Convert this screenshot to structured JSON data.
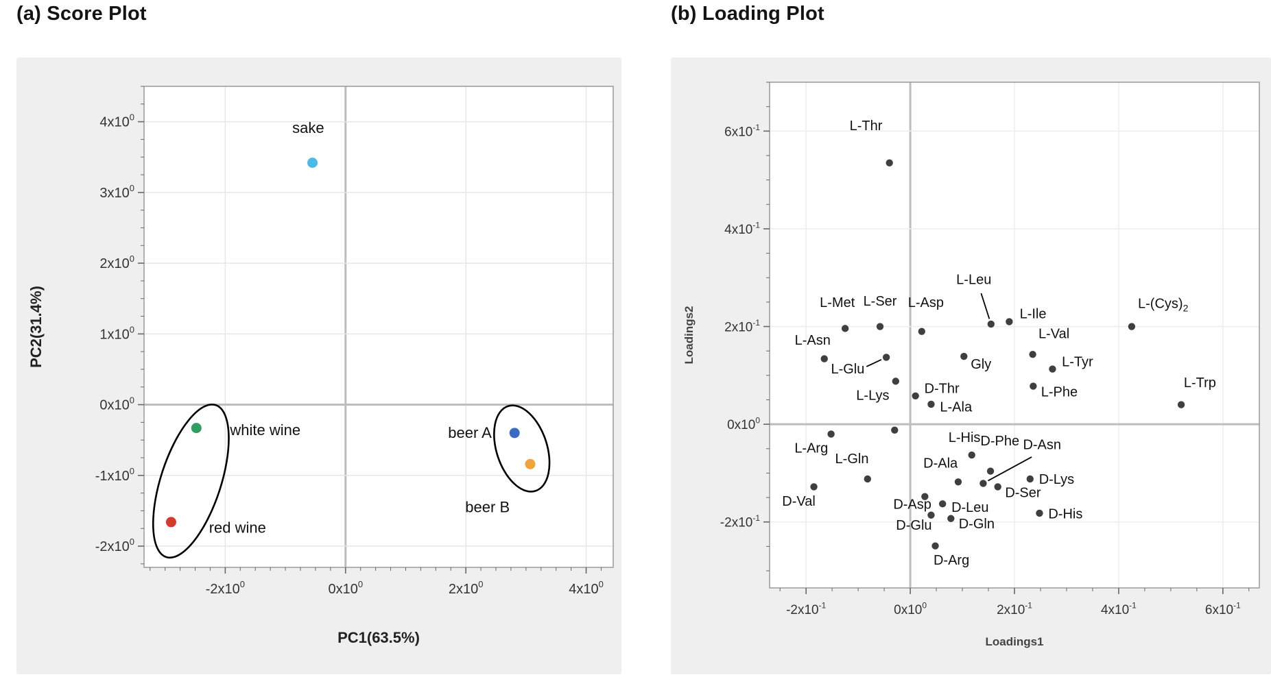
{
  "panels": [
    {
      "title": "(a) Score Plot"
    },
    {
      "title": "(b) Loading Plot"
    }
  ],
  "backgrounds": {
    "page": "#ffffff",
    "panel": "#efefef",
    "plot": "#ffffff"
  },
  "chart_data": [
    {
      "type": "scatter",
      "title": "(a) Score Plot",
      "xlabel": "PC1(63.5%)",
      "ylabel": "PC2(31.4%)",
      "xlim": [
        -3.35,
        4.45
      ],
      "ylim": [
        -2.3,
        4.5
      ],
      "grid": true,
      "x_minor_step": 0.25,
      "y_minor_step": 0.25,
      "point_radius": 7.5,
      "x_ticks": [
        {
          "value": -2,
          "label": "-2x10",
          "exp": "0"
        },
        {
          "value": 0,
          "label": "0x10",
          "exp": "0"
        },
        {
          "value": 2,
          "label": "2x10",
          "exp": "0"
        },
        {
          "value": 4,
          "label": "4x10",
          "exp": "0"
        }
      ],
      "y_ticks": [
        {
          "value": -2,
          "label": "-2x10",
          "exp": "0"
        },
        {
          "value": -1,
          "label": "-1x10",
          "exp": "0"
        },
        {
          "value": 0,
          "label": "0x10",
          "exp": "0"
        },
        {
          "value": 1,
          "label": "1x10",
          "exp": "0"
        },
        {
          "value": 2,
          "label": "2x10",
          "exp": "0"
        },
        {
          "value": 3,
          "label": "3x10",
          "exp": "0"
        },
        {
          "value": 4,
          "label": "4x10",
          "exp": "0"
        }
      ],
      "colors": {
        "grid": "#e6e6e6",
        "zero_line": "#bdbdbd",
        "border": "#9a9a9a",
        "tick": "#666666",
        "tick_label": "#333333",
        "point": "#3f3f3f",
        "label": "#111111",
        "annotation": "#000000",
        "axis_title": "#222222"
      },
      "points": [
        {
          "label": "sake",
          "x": -0.55,
          "y": 3.42,
          "color": "#4cb9e8",
          "lx": -0.62,
          "ly": 3.84,
          "anchor": "middle"
        },
        {
          "label": "white wine",
          "x": -2.48,
          "y": -0.33,
          "color": "#2f9e5f",
          "lx": -1.92,
          "ly": -0.43,
          "anchor": "start"
        },
        {
          "label": "red wine",
          "x": -2.9,
          "y": -1.66,
          "color": "#d63a2b",
          "lx": -2.27,
          "ly": -1.81,
          "anchor": "start"
        },
        {
          "label": "beer A",
          "x": 2.81,
          "y": -0.4,
          "color": "#3a6cc5",
          "lx": 2.43,
          "ly": -0.47,
          "anchor": "end"
        },
        {
          "label": "beer B",
          "x": 3.07,
          "y": -0.84,
          "color": "#f2a33b",
          "lx": 2.36,
          "ly": -1.52,
          "anchor": "middle"
        }
      ],
      "ellipses": [
        {
          "cx": -2.57,
          "cy": -1.08,
          "rx": 0.5,
          "ry": 1.13,
          "rotation": 18
        },
        {
          "cx": 2.93,
          "cy": -0.62,
          "rx": 0.42,
          "ry": 0.63,
          "rotation": -18
        }
      ]
    },
    {
      "type": "scatter",
      "title": "(b) Loading Plot",
      "xlabel": "Loadings1",
      "ylabel": "Loadings2",
      "xlim": [
        -0.27,
        0.67
      ],
      "ylim": [
        -0.335,
        0.7
      ],
      "grid": true,
      "x_minor_step": 0.05,
      "y_minor_step": 0.05,
      "point_radius": 5.2,
      "x_ticks": [
        {
          "value": -0.2,
          "label": "-2x10",
          "exp": "-1"
        },
        {
          "value": 0,
          "label": "0x10",
          "exp": "0"
        },
        {
          "value": 0.2,
          "label": "2x10",
          "exp": "-1"
        },
        {
          "value": 0.4,
          "label": "4x10",
          "exp": "-1"
        },
        {
          "value": 0.6,
          "label": "6x10",
          "exp": "-1"
        }
      ],
      "y_ticks": [
        {
          "value": -0.2,
          "label": "-2x10",
          "exp": "-1"
        },
        {
          "value": 0,
          "label": "0x10",
          "exp": "0"
        },
        {
          "value": 0.2,
          "label": "2x10",
          "exp": "-1"
        },
        {
          "value": 0.4,
          "label": "4x10",
          "exp": "-1"
        },
        {
          "value": 0.6,
          "label": "6x10",
          "exp": "-1"
        }
      ],
      "colors": {
        "grid": "#ededed",
        "zero_line": "#bdbdbd",
        "border": "#9a9a9a",
        "tick": "#666666",
        "tick_label": "#333333",
        "point": "#3f3f3f",
        "label": "#111111",
        "annotation": "#000000",
        "axis_title": "#444444"
      },
      "points": [
        {
          "label": "L-Thr",
          "x": -0.04,
          "y": 0.535,
          "lx": -0.085,
          "ly": 0.602,
          "anchor": "middle"
        },
        {
          "label": "L-Met",
          "x": -0.125,
          "y": 0.196,
          "lx": -0.14,
          "ly": 0.24,
          "anchor": "middle"
        },
        {
          "label": "L-Ser",
          "x": -0.058,
          "y": 0.2,
          "lx": -0.058,
          "ly": 0.243,
          "anchor": "middle"
        },
        {
          "label": "L-Asp",
          "x": 0.022,
          "y": 0.19,
          "lx": 0.03,
          "ly": 0.24,
          "anchor": "middle"
        },
        {
          "label": "L-Leu",
          "x": 0.155,
          "y": 0.205,
          "lx": 0.122,
          "ly": 0.287,
          "anchor": "middle",
          "leader_from": [
            0.136,
            0.268
          ]
        },
        {
          "label": "L-Ile",
          "x": 0.19,
          "y": 0.21,
          "lx": 0.21,
          "ly": 0.217,
          "anchor": "start"
        },
        {
          "label": "L-(Cys)₂",
          "x": 0.425,
          "y": 0.2,
          "lx": 0.437,
          "ly": 0.238,
          "anchor": "start"
        },
        {
          "label": "L-Asn",
          "x": -0.165,
          "y": 0.134,
          "lx": -0.153,
          "ly": 0.163,
          "anchor": "end"
        },
        {
          "label": "L-Glu",
          "x": -0.046,
          "y": 0.137,
          "lx": -0.12,
          "ly": 0.104,
          "anchor": "middle",
          "leader_from": [
            -0.084,
            0.118
          ]
        },
        {
          "label": "L-Lys",
          "x": -0.028,
          "y": 0.088,
          "lx": -0.072,
          "ly": 0.05,
          "anchor": "middle"
        },
        {
          "label": "D-Thr",
          "x": 0.01,
          "y": 0.058,
          "lx": 0.027,
          "ly": 0.064,
          "anchor": "start"
        },
        {
          "label": "L-Ala",
          "x": 0.04,
          "y": 0.041,
          "lx": 0.057,
          "ly": 0.026,
          "anchor": "start"
        },
        {
          "label": "Gly",
          "x": 0.103,
          "y": 0.139,
          "lx": 0.116,
          "ly": 0.114,
          "anchor": "start"
        },
        {
          "label": "L-Val",
          "x": 0.235,
          "y": 0.143,
          "lx": 0.246,
          "ly": 0.176,
          "anchor": "start"
        },
        {
          "label": "L-Tyr",
          "x": 0.273,
          "y": 0.113,
          "lx": 0.291,
          "ly": 0.119,
          "anchor": "start"
        },
        {
          "label": "L-Phe",
          "x": 0.236,
          "y": 0.078,
          "lx": 0.251,
          "ly": 0.057,
          "anchor": "start"
        },
        {
          "label": "L-Trp",
          "x": 0.52,
          "y": 0.04,
          "lx": 0.525,
          "ly": 0.076,
          "anchor": "start"
        },
        {
          "label": "",
          "x": -0.03,
          "y": -0.012
        },
        {
          "label": "L-Arg",
          "x": -0.152,
          "y": -0.02,
          "lx": -0.19,
          "ly": -0.058,
          "anchor": "middle"
        },
        {
          "label": "L-His",
          "x": 0.118,
          "y": -0.063,
          "lx": 0.104,
          "ly": -0.036,
          "anchor": "middle"
        },
        {
          "label": "D-Phe",
          "x": 0.154,
          "y": -0.096,
          "lx": 0.172,
          "ly": -0.043,
          "anchor": "middle"
        },
        {
          "label": "D-Asn",
          "x": 0.14,
          "y": -0.121,
          "lx": 0.253,
          "ly": -0.051,
          "anchor": "middle",
          "leader_from": [
            0.233,
            -0.067
          ]
        },
        {
          "label": "L-Gln",
          "x": -0.082,
          "y": -0.112,
          "lx": -0.112,
          "ly": -0.08,
          "anchor": "middle"
        },
        {
          "label": "D-Ala",
          "x": 0.092,
          "y": -0.118,
          "lx": 0.058,
          "ly": -0.089,
          "anchor": "middle"
        },
        {
          "label": "D-Ser",
          "x": 0.168,
          "y": -0.128,
          "lx": 0.182,
          "ly": -0.149,
          "anchor": "start"
        },
        {
          "label": "D-Lys",
          "x": 0.23,
          "y": -0.112,
          "lx": 0.247,
          "ly": -0.122,
          "anchor": "start"
        },
        {
          "label": "D-Val",
          "x": -0.185,
          "y": -0.128,
          "lx": -0.214,
          "ly": -0.167,
          "anchor": "middle"
        },
        {
          "label": "D-Asp",
          "x": 0.028,
          "y": -0.148,
          "lx": 0.004,
          "ly": -0.173,
          "anchor": "middle"
        },
        {
          "label": "D-Leu",
          "x": 0.062,
          "y": -0.163,
          "lx": 0.079,
          "ly": -0.179,
          "anchor": "start"
        },
        {
          "label": "D-His",
          "x": 0.248,
          "y": -0.182,
          "lx": 0.265,
          "ly": -0.193,
          "anchor": "start"
        },
        {
          "label": "D-Glu",
          "x": 0.04,
          "y": -0.186,
          "lx": 0.007,
          "ly": -0.216,
          "anchor": "middle"
        },
        {
          "label": "D-Gln",
          "x": 0.078,
          "y": -0.193,
          "lx": 0.093,
          "ly": -0.213,
          "anchor": "start"
        },
        {
          "label": "D-Arg",
          "x": 0.048,
          "y": -0.249,
          "lx": 0.079,
          "ly": -0.287,
          "anchor": "middle"
        }
      ],
      "ellipses": []
    }
  ]
}
